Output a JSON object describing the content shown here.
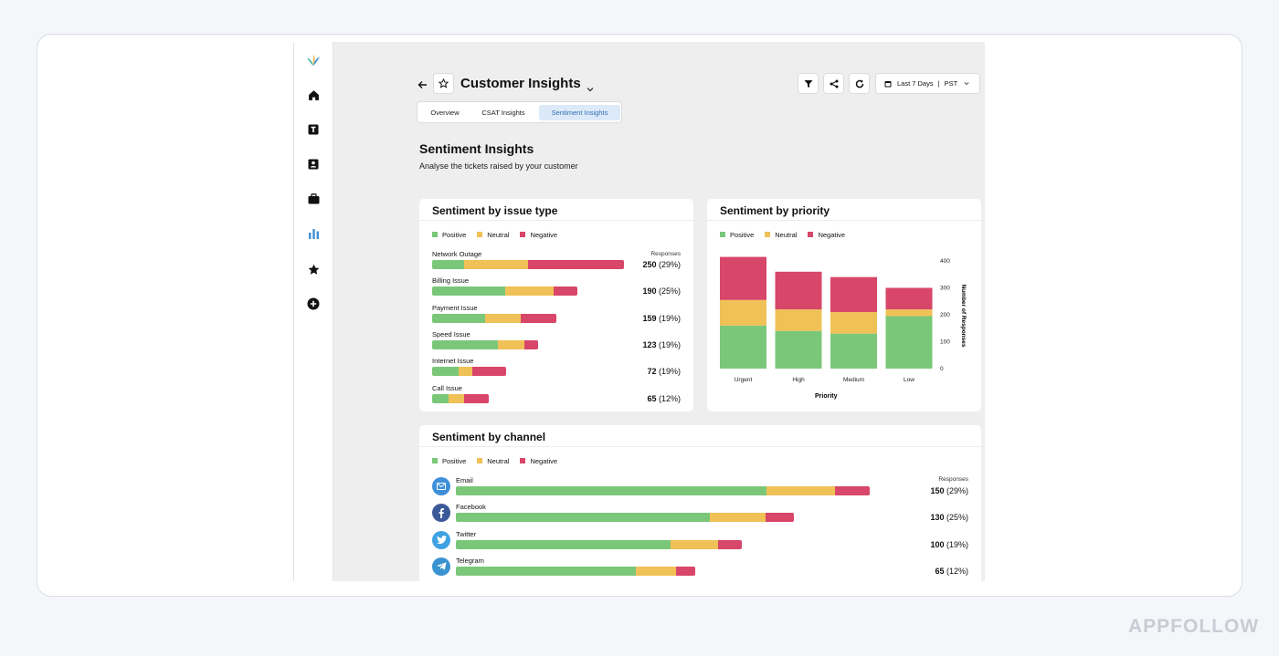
{
  "header": {
    "title": "Customer Insights",
    "date_range": "Last 7 Days",
    "timezone": "PST"
  },
  "tabs": [
    {
      "label": "Overview",
      "active": false
    },
    {
      "label": "CSAT Insights",
      "active": false
    },
    {
      "label": "Sentiment Insights",
      "active": true
    }
  ],
  "page": {
    "heading": "Sentiment Insights",
    "subheading": "Analyse the tickets raised by your customer"
  },
  "legend": {
    "positive": "Positive",
    "neutral": "Neutral",
    "negative": "Negative"
  },
  "colors": {
    "positive": "#7bc77a",
    "neutral": "#f0c157",
    "negative": "#d8466a",
    "accent": "#2f6fb3"
  },
  "issue_card": {
    "title": "Sentiment by issue type",
    "responses_label": "Responses",
    "rows": [
      {
        "label": "Network Outage",
        "count": "250",
        "pct": "(29%)",
        "positive": 35,
        "neutral": 70,
        "negative": 105
      },
      {
        "label": "Billing Issue",
        "count": "190",
        "pct": "(25%)",
        "positive": 80,
        "neutral": 53,
        "negative": 26
      },
      {
        "label": "Payment Issue",
        "count": "159",
        "pct": "(19%)",
        "positive": 58,
        "neutral": 39,
        "negative": 39
      },
      {
        "label": "Speed Issue",
        "count": "123",
        "pct": "(19%)",
        "positive": 72,
        "neutral": 29,
        "negative": 15
      },
      {
        "label": "Internet Issue",
        "count": "72",
        "pct": "(19%)",
        "positive": 29,
        "neutral": 15,
        "negative": 37
      },
      {
        "label": "Call Issue",
        "count": "65",
        "pct": "(12%)",
        "positive": 18,
        "neutral": 17,
        "negative": 27
      }
    ]
  },
  "channel_card": {
    "title": "Sentiment by channel",
    "responses_label": "Responses",
    "rows": [
      {
        "label": "Email",
        "icon": "mail-icon",
        "color": "#3f8fd8",
        "count": "150",
        "pct": "(29%)",
        "positive": 340,
        "neutral": 75,
        "negative": 38
      },
      {
        "label": "Facebook",
        "icon": "facebook-icon",
        "color": "#3b5998",
        "count": "130",
        "pct": "(25%)",
        "positive": 278,
        "neutral": 61,
        "negative": 31
      },
      {
        "label": "Twitter",
        "icon": "twitter-icon",
        "color": "#3fa3e3",
        "count": "100",
        "pct": "(19%)",
        "positive": 235,
        "neutral": 52,
        "negative": 26
      },
      {
        "label": "Telegram",
        "icon": "telegram-icon",
        "color": "#3a93d0",
        "count": "65",
        "pct": "(12%)",
        "positive": 197,
        "neutral": 44,
        "negative": 21
      }
    ]
  },
  "chart_data": {
    "type": "bar",
    "stacked": true,
    "title": "Sentiment by priority",
    "xlabel": "Priority",
    "ylabel": "Number of Responses",
    "categories": [
      "Urgent",
      "High",
      "Medium",
      "Low"
    ],
    "ylim": [
      0,
      400
    ],
    "yticks": [
      0,
      100,
      200,
      300,
      400
    ],
    "series": [
      {
        "name": "Positive",
        "values": [
          160,
          140,
          130,
          195
        ]
      },
      {
        "name": "Neutral",
        "values": [
          95,
          80,
          80,
          25
        ]
      },
      {
        "name": "Negative",
        "values": [
          160,
          140,
          130,
          80
        ]
      }
    ],
    "legend": "top-left"
  }
}
